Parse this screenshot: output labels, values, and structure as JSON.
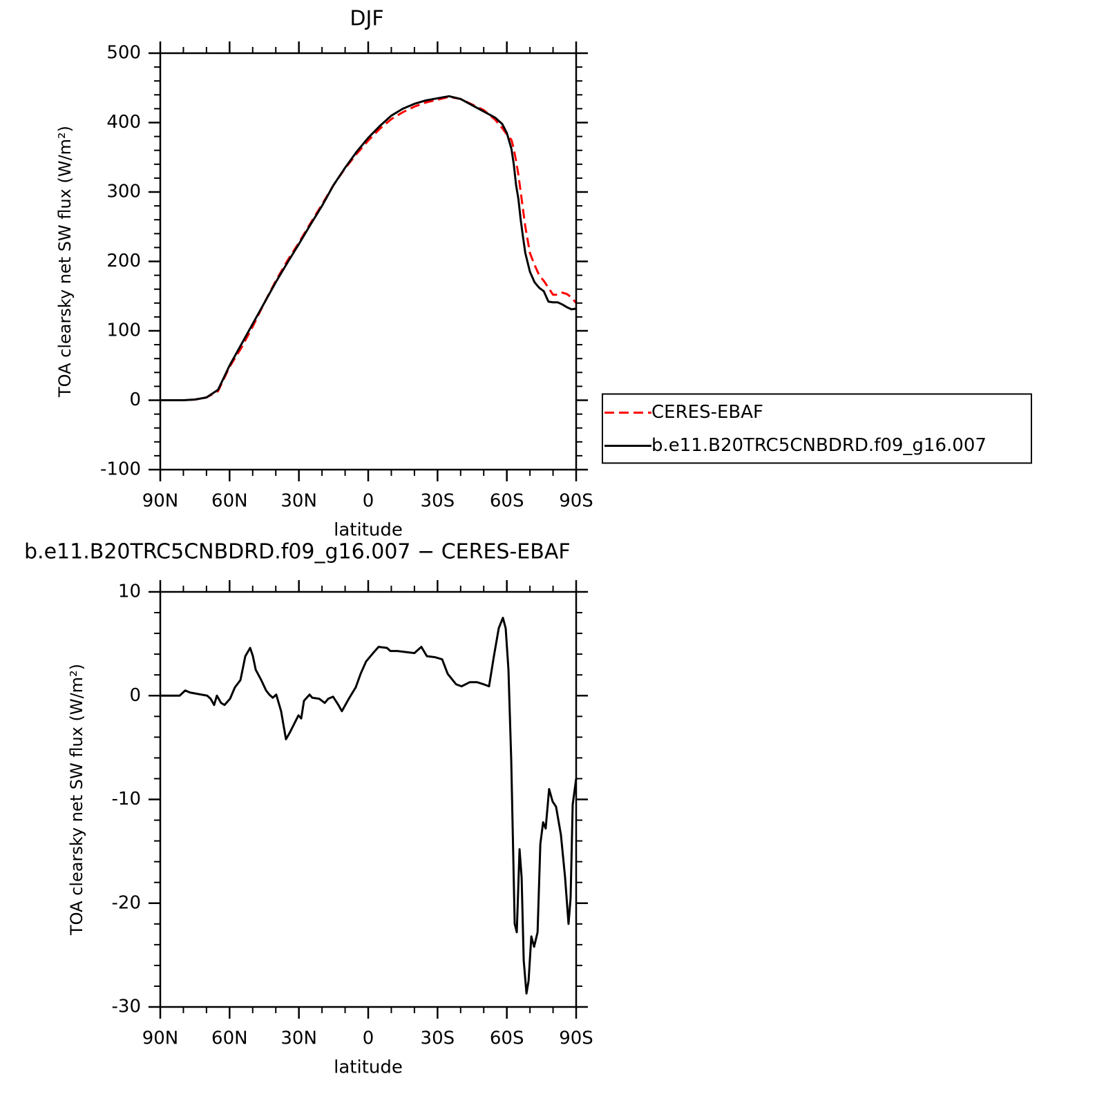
{
  "chart_data": [
    {
      "type": "line",
      "title": "DJF",
      "xlabel": "latitude",
      "ylabel": "TOA clearsky net SW flux (W/m²)",
      "xlim": [
        90,
        -90
      ],
      "xticks": [
        {
          "value": 90,
          "label": "90N"
        },
        {
          "value": 60,
          "label": "60N"
        },
        {
          "value": 30,
          "label": "30N"
        },
        0,
        {
          "value": -30,
          "label": "30S"
        },
        {
          "value": -60,
          "label": "60S"
        },
        {
          "value": -90,
          "label": "90S"
        }
      ],
      "ylim": [
        -100,
        500
      ],
      "yticks": [
        -100,
        0,
        100,
        200,
        300,
        400,
        500
      ],
      "legend": "right",
      "x": [
        90,
        85,
        80,
        75,
        70,
        65,
        60,
        55,
        50,
        45,
        40,
        35,
        30,
        25,
        20,
        15,
        10,
        5,
        0,
        -5,
        -10,
        -15,
        -20,
        -25,
        -30,
        -35,
        -40,
        -45,
        -50,
        -55,
        -58,
        -60,
        -62,
        -63,
        -64,
        -65,
        -66,
        -67,
        -68,
        -70,
        -72,
        -74,
        -76,
        -78,
        -80,
        -82,
        -84,
        -86,
        -88,
        -90
      ],
      "series": [
        {
          "name": "CERES-EBAF",
          "color": "#ff0000",
          "line_style": "dashed",
          "values": [
            0,
            0,
            0,
            1,
            4,
            13,
            48,
            75,
            106,
            140,
            172,
            201,
            227,
            255,
            282,
            310,
            334,
            355,
            374,
            391,
            405,
            415,
            423,
            429,
            433,
            437,
            434,
            426,
            418,
            404,
            392,
            383,
            375,
            362,
            345,
            325,
            300,
            275,
            250,
            212,
            195,
            180,
            172,
            162,
            152,
            152,
            155,
            153,
            148,
            140
          ]
        },
        {
          "name": "b.e11.B20TRC5CNBDRD.f09_g16.007",
          "color": "#000000",
          "line_style": "solid",
          "values": [
            0,
            0,
            0,
            1,
            4,
            15,
            50,
            80,
            110,
            140,
            170,
            198,
            225,
            253,
            280,
            310,
            335,
            358,
            378,
            395,
            410,
            420,
            427,
            432,
            435,
            438,
            434,
            425,
            416,
            407,
            398,
            385,
            362,
            340,
            310,
            290,
            260,
            235,
            212,
            185,
            170,
            162,
            157,
            142,
            141,
            141,
            138,
            134,
            131,
            132
          ]
        }
      ]
    },
    {
      "type": "line",
      "title": "b.e11.B20TRC5CNBDRD.f09_g16.007 − CERES-EBAF",
      "xlabel": "latitude",
      "ylabel": "TOA clearsky net SW flux (W/m²)",
      "xlim": [
        90,
        -90
      ],
      "xticks": [
        {
          "value": 90,
          "label": "90N"
        },
        {
          "value": 60,
          "label": "60N"
        },
        {
          "value": 30,
          "label": "30N"
        },
        0,
        {
          "value": -30,
          "label": "30S"
        },
        {
          "value": -60,
          "label": "60S"
        },
        {
          "value": -90,
          "label": "90S"
        }
      ],
      "ylim": [
        -30,
        10
      ],
      "yticks": [
        -30,
        -20,
        -10,
        0,
        10
      ],
      "x": [
        90,
        81.6,
        79.2,
        77.1,
        69.7,
        68.2,
        66.7,
        65.5,
        63.7,
        62.2,
        59.8,
        57.7,
        55.3,
        53.2,
        51.1,
        49.9,
        48.7,
        46.3,
        44.2,
        42.8,
        41.3,
        39.8,
        37.7,
        35.6,
        33.8,
        30.2,
        29.0,
        27.8,
        25.4,
        24.2,
        21.2,
        18.8,
        17.3,
        15.2,
        12.9,
        11.4,
        8.4,
        5.4,
        3.3,
        0.9,
        -2.1,
        -4.5,
        -8.1,
        -9.6,
        -12.6,
        -20.0,
        -23.0,
        -25.4,
        -29.0,
        -32.0,
        -34.4,
        -38.0,
        -40.4,
        -44.0,
        -47.0,
        -49.9,
        -52.3,
        -54.4,
        -56.5,
        -58.3,
        -59.5,
        -60.7,
        -61.9,
        -63.4,
        -64.3,
        -65.5,
        -66.4,
        -67.3,
        -68.5,
        -69.4,
        -70.6,
        -71.8,
        -73.3,
        -74.5,
        -75.7,
        -76.8,
        -78.3,
        -79.8,
        -81.3,
        -83.4,
        -85.2,
        -86.7,
        -87.6,
        -88.5,
        -90
      ],
      "series": [
        {
          "name": "b.e11.B20TRC5CNBDRD.f09_g16.007 − CERES-EBAF",
          "color": "#000000",
          "line_style": "solid",
          "values": [
            0,
            0,
            0.5,
            0.3,
            0,
            -0.3,
            -0.9,
            0,
            -0.7,
            -0.9,
            -0.3,
            0.8,
            1.5,
            3.8,
            4.6,
            3.8,
            2.5,
            1.5,
            0.5,
            0.1,
            -0.2,
            0.1,
            -1.5,
            -4.2,
            -3.5,
            -1.9,
            -2.2,
            -0.5,
            0.1,
            -0.2,
            -0.3,
            -0.7,
            -0.3,
            -0.1,
            -0.9,
            -1.5,
            -0.3,
            0.8,
            2.1,
            3.3,
            4.1,
            4.7,
            4.6,
            4.3,
            4.3,
            4.1,
            4.7,
            3.8,
            3.7,
            3.5,
            2.1,
            1.1,
            0.9,
            1.3,
            1.3,
            1.1,
            0.9,
            3.8,
            6.5,
            7.5,
            6.5,
            2.5,
            -6.2,
            -22,
            -22.8,
            -14.8,
            -17.5,
            -25.5,
            -28.7,
            -27.5,
            -23.2,
            -24.2,
            -22.8,
            -14.3,
            -12.2,
            -12.8,
            -9,
            -10.2,
            -10.7,
            -13.4,
            -17.5,
            -22,
            -19.5,
            -10.5,
            -8
          ]
        }
      ]
    }
  ]
}
